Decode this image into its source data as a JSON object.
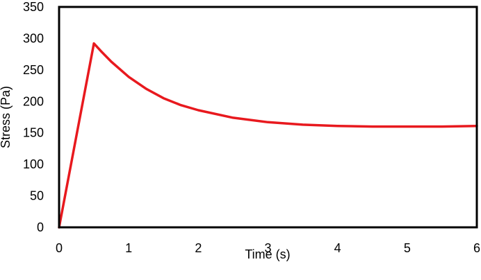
{
  "chart_data": {
    "type": "line",
    "title": "",
    "xlabel": "Time (s)",
    "ylabel": "Stress (Pa)",
    "xlim": [
      0,
      6
    ],
    "ylim": [
      0,
      350
    ],
    "xticks": [
      0,
      1,
      2,
      3,
      4,
      5,
      6
    ],
    "yticks": [
      0,
      50,
      100,
      150,
      200,
      250,
      300,
      350
    ],
    "grid": false,
    "legend": "none",
    "series": [
      {
        "color": "#e8191e",
        "x": [
          0,
          0.5,
          0.6,
          0.75,
          1.0,
          1.25,
          1.5,
          1.75,
          2.0,
          2.5,
          3.0,
          3.5,
          4.0,
          4.5,
          5.0,
          5.5,
          6.0
        ],
        "y": [
          0,
          292,
          280,
          263,
          239,
          220,
          205,
          194,
          186,
          174,
          167,
          163,
          161,
          160,
          160,
          160,
          161
        ]
      }
    ]
  }
}
